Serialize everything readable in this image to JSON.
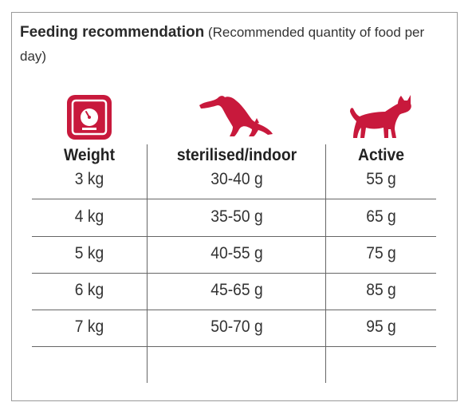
{
  "heading": {
    "title": "Feeding recommendation",
    "subtitle": " (Recommended quantity of food per day)"
  },
  "colors": {
    "accent": "#c8193c",
    "line": "#666666",
    "border": "#9a9a9a"
  },
  "icons": {
    "weight": "scale-icon",
    "sterilised": "stretching-cat-icon",
    "active": "standing-cat-icon"
  },
  "table": {
    "headers": [
      "Weight",
      "sterilised/indoor",
      "Active"
    ],
    "rows": [
      [
        "3 kg",
        "30-40 g",
        "55 g"
      ],
      [
        "4 kg",
        "35-50 g",
        "65 g"
      ],
      [
        "5 kg",
        "40-55 g",
        "75 g"
      ],
      [
        "6 kg",
        "45-65 g",
        "85 g"
      ],
      [
        "7 kg",
        "50-70 g",
        "95 g"
      ]
    ]
  }
}
